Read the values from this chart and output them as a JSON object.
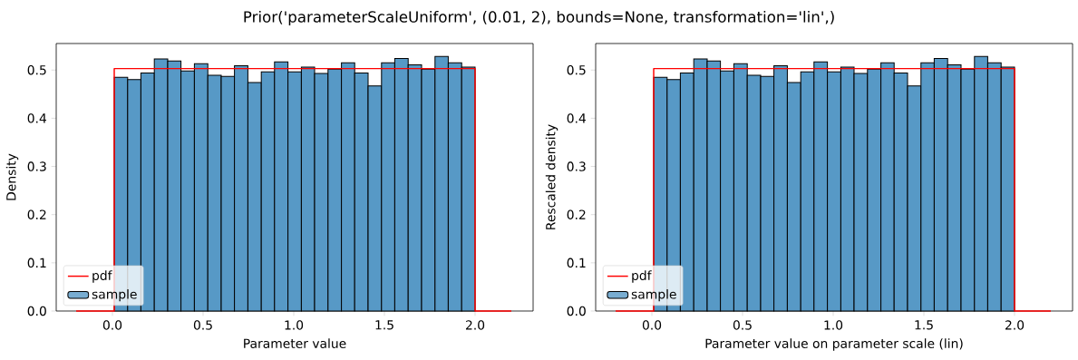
{
  "chart_data": [
    {
      "type": "histogram",
      "title": "Prior('parameterScaleUniform', (0.01, 2), bounds=None, transformation='lin',)",
      "xlabel": "Parameter value",
      "ylabel": "Density",
      "xlim": [
        -0.31,
        2.32
      ],
      "ylim": [
        0,
        0.555
      ],
      "xticks": [
        {
          "value": 0,
          "label": "0.0"
        },
        {
          "value": 0.5,
          "label": "0.5"
        },
        {
          "value": 1,
          "label": "1.0"
        },
        {
          "value": 1.5,
          "label": "1.5"
        },
        {
          "value": 2,
          "label": "2.0"
        }
      ],
      "yticks": [
        {
          "value": 0,
          "label": "0.0"
        },
        {
          "value": 0.1,
          "label": "0.1"
        },
        {
          "value": 0.2,
          "label": "0.2"
        },
        {
          "value": 0.3,
          "label": "0.3"
        },
        {
          "value": 0.4,
          "label": "0.4"
        },
        {
          "value": 0.5,
          "label": "0.5"
        }
      ],
      "legend": "bottom left",
      "series": [
        {
          "type": "line",
          "name": "pdf",
          "color": "#ff0000",
          "x": [
            -0.2,
            0.01,
            0.01,
            2.0,
            2.0,
            2.2
          ],
          "values": [
            0,
            0,
            0.503,
            0.503,
            0,
            0
          ]
        },
        {
          "name": "sample",
          "color": "#5799c6",
          "bins": [
            0.01,
            0.084,
            0.157,
            0.231,
            0.305,
            0.378,
            0.452,
            0.526,
            0.6,
            0.673,
            0.747,
            0.821,
            0.894,
            0.968,
            1.042,
            1.115,
            1.189,
            1.263,
            1.336,
            1.41,
            1.484,
            1.557,
            1.631,
            1.705,
            1.779,
            1.852,
            1.926,
            2.0
          ],
          "values": [
            0.485,
            0.48,
            0.494,
            0.523,
            0.519,
            0.498,
            0.513,
            0.489,
            0.487,
            0.509,
            0.474,
            0.496,
            0.517,
            0.496,
            0.506,
            0.493,
            0.502,
            0.515,
            0.494,
            0.467,
            0.515,
            0.524,
            0.511,
            0.502,
            0.528,
            0.515,
            0.506
          ]
        }
      ]
    },
    {
      "type": "histogram",
      "xlabel": "Parameter value on parameter scale (lin)",
      "ylabel": "Rescaled density",
      "xlim": [
        -0.31,
        2.32
      ],
      "ylim": [
        0,
        0.555
      ],
      "xticks": [
        {
          "value": 0,
          "label": "0.0"
        },
        {
          "value": 0.5,
          "label": "0.5"
        },
        {
          "value": 1,
          "label": "1.0"
        },
        {
          "value": 1.5,
          "label": "1.5"
        },
        {
          "value": 2,
          "label": "2.0"
        }
      ],
      "yticks": [
        {
          "value": 0,
          "label": "0.0"
        },
        {
          "value": 0.1,
          "label": "0.1"
        },
        {
          "value": 0.2,
          "label": "0.2"
        },
        {
          "value": 0.3,
          "label": "0.3"
        },
        {
          "value": 0.4,
          "label": "0.4"
        },
        {
          "value": 0.5,
          "label": "0.5"
        }
      ],
      "legend": "bottom left",
      "series": [
        {
          "type": "line",
          "name": "pdf",
          "color": "#ff0000",
          "x": [
            -0.2,
            0.01,
            0.01,
            2.0,
            2.0,
            2.2
          ],
          "values": [
            0,
            0,
            0.503,
            0.503,
            0,
            0
          ]
        },
        {
          "name": "sample",
          "color": "#5799c6",
          "bins": [
            0.01,
            0.084,
            0.157,
            0.231,
            0.305,
            0.378,
            0.452,
            0.526,
            0.6,
            0.673,
            0.747,
            0.821,
            0.894,
            0.968,
            1.042,
            1.115,
            1.189,
            1.263,
            1.336,
            1.41,
            1.484,
            1.557,
            1.631,
            1.705,
            1.779,
            1.852,
            1.926,
            2.0
          ],
          "values": [
            0.485,
            0.48,
            0.494,
            0.523,
            0.519,
            0.498,
            0.513,
            0.489,
            0.487,
            0.509,
            0.474,
            0.496,
            0.517,
            0.496,
            0.506,
            0.493,
            0.502,
            0.515,
            0.494,
            0.467,
            0.515,
            0.524,
            0.511,
            0.502,
            0.528,
            0.515,
            0.506
          ]
        }
      ]
    }
  ]
}
